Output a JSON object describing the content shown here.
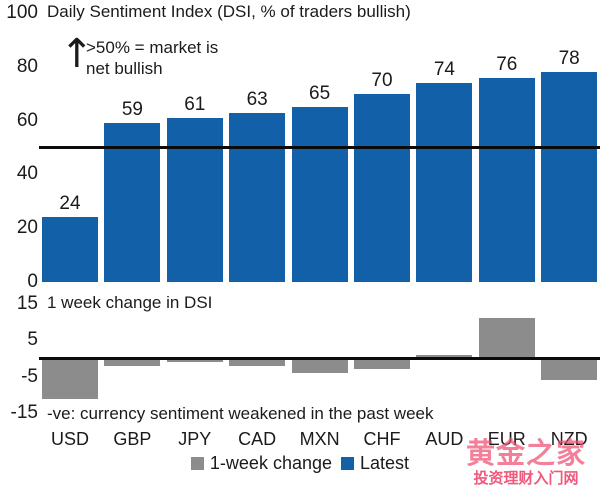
{
  "title": "Daily Sentiment Index (DSI, % of traders bullish)",
  "annotation": {
    "arrow_icon": "up-arrow",
    "arrow_glyph": "↑",
    "line1": ">50% = market is",
    "line2": "net bullish"
  },
  "lower_panel": {
    "subtitle": "1 week change in DSI",
    "note": "-ve: currency sentiment weakened in the past week"
  },
  "legend": {
    "items": [
      {
        "label": "1-week change",
        "color": "#8c8c8c"
      },
      {
        "label": "Latest",
        "color": "#1160a8"
      }
    ]
  },
  "watermark": {
    "line1": "黄金之家",
    "line2": "投资理财入门网"
  },
  "colors": {
    "latest_bar": "#1160a8",
    "change_bar": "#8c8c8c",
    "reference_line": "#0b0b0b",
    "text": "#1b1b1b",
    "watermark_pink": "#ee4d70"
  },
  "chart_data": [
    {
      "type": "bar",
      "title": "Daily Sentiment Index (DSI, % of traders bullish)",
      "series_name": "Latest",
      "categories": [
        "USD",
        "GBP",
        "JPY",
        "CAD",
        "MXN",
        "CHF",
        "AUD",
        "EUR",
        "NZD"
      ],
      "values": [
        24,
        59,
        61,
        63,
        65,
        70,
        74,
        76,
        78
      ],
      "ylim": [
        0,
        100
      ],
      "yticks": [
        0,
        20,
        40,
        60,
        80,
        100
      ],
      "threshold_line": 50,
      "bar_color": "#1160a8",
      "grid": false,
      "data_labels": true
    },
    {
      "type": "bar",
      "title": "1 week change in DSI",
      "series_name": "1-week change",
      "categories": [
        "USD",
        "GBP",
        "JPY",
        "CAD",
        "MXN",
        "CHF",
        "AUD",
        "EUR",
        "NZD"
      ],
      "values": [
        -11,
        -2,
        -1,
        -2,
        -4,
        -3,
        1,
        11,
        -6
      ],
      "ylim": [
        -15,
        15
      ],
      "yticks": [
        15,
        5,
        -5,
        -15
      ],
      "zero_line": 0,
      "bar_color": "#8c8c8c",
      "grid": false,
      "data_labels": false,
      "legend_position": "bottom"
    }
  ]
}
